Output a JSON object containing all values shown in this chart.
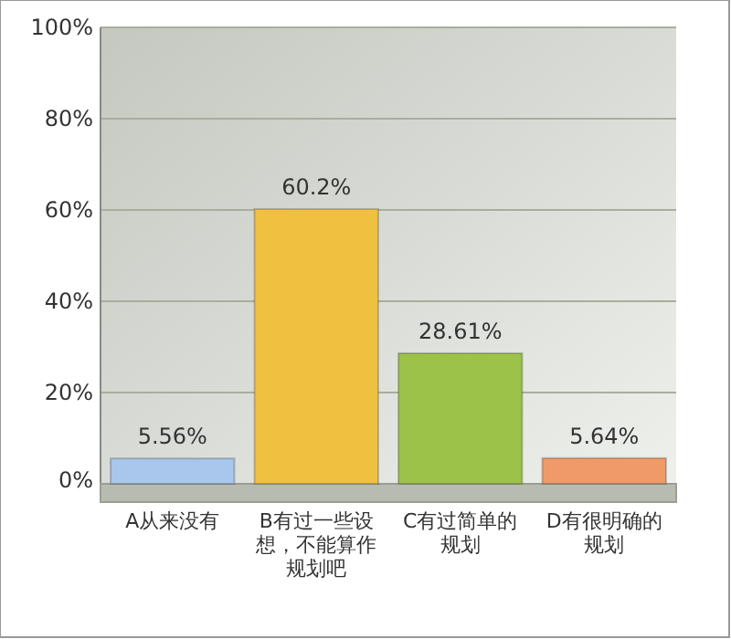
{
  "chart_data": {
    "type": "bar",
    "categories": [
      "A从来没有",
      "B有过一些设想，不能算作规划吧",
      "C有过简单的规划",
      "D有很明确的规划"
    ],
    "values": [
      5.56,
      60.2,
      28.61,
      5.64
    ],
    "colors": [
      "#a9c6ec",
      "#f0c040",
      "#9cc24a",
      "#f09a6a"
    ],
    "value_labels": [
      "5.56%",
      "60.2%",
      "28.61%",
      "5.64%"
    ],
    "ylim": [
      0,
      100
    ],
    "yticks": [
      {
        "value": 0,
        "label": "0%"
      },
      {
        "value": 20,
        "label": "20%"
      },
      {
        "value": 40,
        "label": "40%"
      },
      {
        "value": 60,
        "label": "60%"
      },
      {
        "value": 80,
        "label": "80%"
      },
      {
        "value": 100,
        "label": "100%"
      }
    ],
    "grid": "y"
  }
}
